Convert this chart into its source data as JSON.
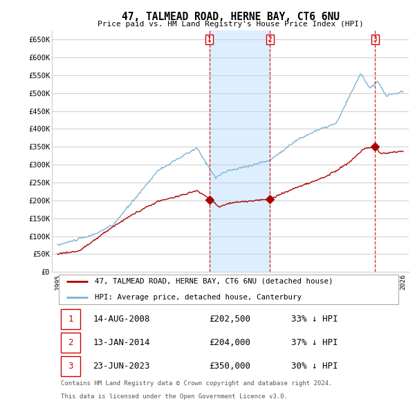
{
  "title": "47, TALMEAD ROAD, HERNE BAY, CT6 6NU",
  "subtitle": "Price paid vs. HM Land Registry's House Price Index (HPI)",
  "ylabel_ticks": [
    "£0",
    "£50K",
    "£100K",
    "£150K",
    "£200K",
    "£250K",
    "£300K",
    "£350K",
    "£400K",
    "£450K",
    "£500K",
    "£550K",
    "£600K",
    "£650K"
  ],
  "ylim": [
    0,
    675000
  ],
  "ytick_values": [
    0,
    50000,
    100000,
    150000,
    200000,
    250000,
    300000,
    350000,
    400000,
    450000,
    500000,
    550000,
    600000,
    650000
  ],
  "hpi_color": "#7ab3d4",
  "price_color": "#aa0000",
  "vline_color": "#cc0000",
  "shade_color": "#ddeeff",
  "transactions": [
    {
      "num": 1,
      "date": "14-AUG-2008",
      "price": 202500,
      "pct": "33%",
      "x_year": 2008.62
    },
    {
      "num": 2,
      "date": "13-JAN-2014",
      "price": 204000,
      "pct": "37%",
      "x_year": 2014.04
    },
    {
      "num": 3,
      "date": "23-JUN-2023",
      "price": 350000,
      "pct": "30%",
      "x_year": 2023.47
    }
  ],
  "legend_label_red": "47, TALMEAD ROAD, HERNE BAY, CT6 6NU (detached house)",
  "legend_label_blue": "HPI: Average price, detached house, Canterbury",
  "footer_line1": "Contains HM Land Registry data © Crown copyright and database right 2024.",
  "footer_line2": "This data is licensed under the Open Government Licence v3.0.",
  "table_rows": [
    {
      "num": 1,
      "date": "14-AUG-2008",
      "price": "£202,500",
      "pct": "33% ↓ HPI"
    },
    {
      "num": 2,
      "date": "13-JAN-2014",
      "price": "£204,000",
      "pct": "37% ↓ HPI"
    },
    {
      "num": 3,
      "date": "23-JUN-2023",
      "price": "£350,000",
      "pct": "30% ↓ HPI"
    }
  ],
  "bg_color": "#ffffff",
  "grid_color": "#cccccc",
  "xlim_start": 1994.5,
  "xlim_end": 2026.5
}
